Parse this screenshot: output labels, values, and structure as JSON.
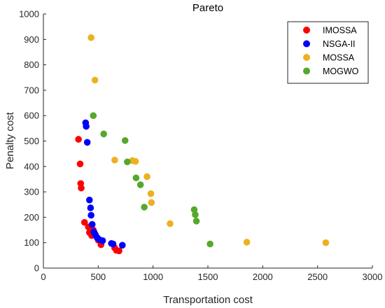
{
  "chart_data": {
    "type": "scatter",
    "title": "Pareto",
    "xlabel": "Transportation cost",
    "ylabel": "Penalty cost",
    "xlim": [
      0,
      3000
    ],
    "ylim": [
      0,
      1000
    ],
    "xticks": [
      "0",
      "500",
      "1000",
      "1500",
      "2000",
      "2500",
      "3000"
    ],
    "yticks": [
      "0",
      "100",
      "200",
      "300",
      "400",
      "500",
      "600",
      "700",
      "800",
      "900",
      "1000"
    ],
    "legend_position": "top-right",
    "series": [
      {
        "name": "IMOSSA",
        "color": "#ff0000",
        "points": [
          [
            320,
            507
          ],
          [
            335,
            410
          ],
          [
            340,
            333
          ],
          [
            345,
            315
          ],
          [
            375,
            180
          ],
          [
            410,
            162
          ],
          [
            420,
            140
          ],
          [
            440,
            128
          ],
          [
            455,
            150
          ],
          [
            470,
            135
          ],
          [
            500,
            110
          ],
          [
            525,
            92
          ],
          [
            650,
            80
          ],
          [
            665,
            70
          ],
          [
            690,
            68
          ]
        ]
      },
      {
        "name": "NSGA-II",
        "color": "#0000ff",
        "points": [
          [
            385,
            572
          ],
          [
            390,
            558
          ],
          [
            400,
            495
          ],
          [
            420,
            268
          ],
          [
            430,
            237
          ],
          [
            435,
            208
          ],
          [
            445,
            172
          ],
          [
            460,
            143
          ],
          [
            475,
            130
          ],
          [
            490,
            120
          ],
          [
            510,
            112
          ],
          [
            540,
            108
          ],
          [
            620,
            97
          ],
          [
            635,
            95
          ],
          [
            720,
            90
          ]
        ]
      },
      {
        "name": "MOSSA",
        "color": "#edb120",
        "points": [
          [
            435,
            907
          ],
          [
            470,
            740
          ],
          [
            650,
            425
          ],
          [
            810,
            423
          ],
          [
            840,
            420
          ],
          [
            945,
            360
          ],
          [
            980,
            293
          ],
          [
            985,
            258
          ],
          [
            1155,
            175
          ],
          [
            1855,
            102
          ],
          [
            2575,
            100
          ]
        ]
      },
      {
        "name": "MOGWO",
        "color": "#55a82a",
        "points": [
          [
            455,
            600
          ],
          [
            550,
            528
          ],
          [
            745,
            502
          ],
          [
            765,
            418
          ],
          [
            845,
            355
          ],
          [
            885,
            328
          ],
          [
            920,
            240
          ],
          [
            1375,
            230
          ],
          [
            1385,
            210
          ],
          [
            1395,
            185
          ],
          [
            1520,
            95
          ]
        ]
      }
    ]
  }
}
